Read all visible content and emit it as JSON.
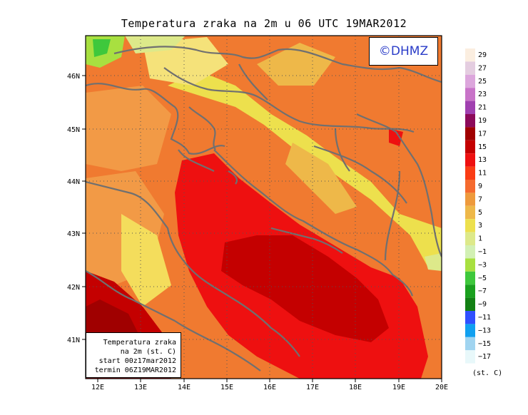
{
  "title": "Temperatura zraka na 2m u 06 UTC 19MAR2012",
  "logo_text": "©DHMZ",
  "info_box": {
    "line1": "Temperatura zraka",
    "line2": "na 2m (st. C)",
    "line3": "start 00z17mar2012",
    "line4": "termin 06Z19MAR2012"
  },
  "axes": {
    "lon_labels": [
      "12E",
      "13E",
      "14E",
      "15E",
      "16E",
      "17E",
      "18E",
      "19E",
      "20E"
    ],
    "lat_labels": [
      "41N",
      "42N",
      "43N",
      "44N",
      "45N",
      "46N"
    ]
  },
  "legend": {
    "unit": "(st. C)",
    "labels": [
      "29",
      "27",
      "25",
      "23",
      "21",
      "19",
      "17",
      "15",
      "13",
      "11",
      "9",
      "7",
      "5",
      "3",
      "1",
      "−1",
      "−3",
      "−5",
      "−7",
      "−9",
      "−11",
      "−13",
      "−15",
      "−17"
    ],
    "colors": [
      "#fbeee0",
      "#e4cde0",
      "#dca6dc",
      "#c873c8",
      "#a040b0",
      "#8c0a5a",
      "#a00000",
      "#c40000",
      "#ee1010",
      "#fa3c14",
      "#f56a2e",
      "#ee9a3c",
      "#eeb849",
      "#ede04d",
      "#dde98a",
      "#d2f0b4",
      "#a8e040",
      "#3ec83c",
      "#1aa01e",
      "#128014",
      "#3050ff",
      "#10a0f0",
      "#a0d4f0",
      "#e8f8fa"
    ]
  }
}
